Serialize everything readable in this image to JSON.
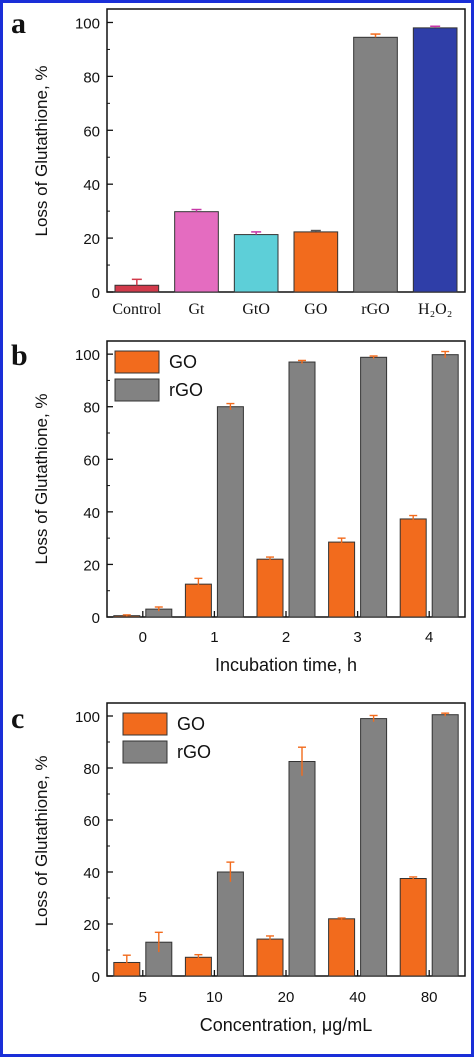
{
  "chart_data": [
    {
      "panel_label": "a",
      "type": "bar",
      "ylabel": "Loss of Glutathione, %",
      "xlabel": "",
      "ylim": [
        0,
        105
      ],
      "yticks": [
        "0",
        "20",
        "40",
        "60",
        "80",
        "100"
      ],
      "category_labels": [
        "Control",
        "Gt",
        "GtO",
        "GO",
        "rGO",
        "H₂O₂"
      ],
      "categories": [
        "Control",
        "Gt",
        "GtO",
        "GO",
        "rGO",
        "H2O2"
      ],
      "values": [
        2.5,
        29.8,
        21.3,
        22.3,
        94.5,
        98.0
      ],
      "errors": [
        2.2,
        0.8,
        1.0,
        0.5,
        1.2,
        0.6
      ],
      "colors": [
        "#d23a4b",
        "#e46cc0",
        "#5dcfd8",
        "#f26b1d",
        "#828282",
        "#2f3ea8"
      ],
      "error_colors": [
        "#d23a4b",
        "#c838a8",
        "#c838a8",
        "#555555",
        "#f26b1d",
        "#c838a8"
      ],
      "grid": false
    },
    {
      "panel_label": "b",
      "type": "bar",
      "ylabel": "Loss of Glutathione, %",
      "xlabel": "Incubation time, h",
      "ylim": [
        0,
        105
      ],
      "yticks": [
        "0",
        "20",
        "40",
        "60",
        "80",
        "100"
      ],
      "categories": [
        "0",
        "1",
        "2",
        "3",
        "4"
      ],
      "series": [
        {
          "name": "GO",
          "values": [
            0.5,
            12.5,
            22.0,
            28.5,
            37.3
          ],
          "errors": [
            0.3,
            2.2,
            0.8,
            1.5,
            1.3
          ],
          "color": "#f26b1d"
        },
        {
          "name": "rGO",
          "values": [
            3.0,
            80.0,
            97.0,
            98.8,
            99.8
          ],
          "errors": [
            0.8,
            1.2,
            0.6,
            0.5,
            1.2
          ],
          "color": "#828282"
        }
      ],
      "error_color": "#f26b1d",
      "legend": "top-left",
      "grid": false
    },
    {
      "panel_label": "c",
      "type": "bar",
      "ylabel": "Loss of Glutathione, %",
      "xlabel": "Concentration, μg/mL",
      "ylim": [
        0,
        105
      ],
      "yticks": [
        "0",
        "20",
        "40",
        "60",
        "80",
        "100"
      ],
      "categories": [
        "5",
        "10",
        "20",
        "40",
        "80"
      ],
      "series": [
        {
          "name": "GO",
          "values": [
            5.2,
            7.2,
            14.2,
            22.0,
            37.5
          ],
          "errors": [
            2.8,
            1.0,
            1.2,
            0.3,
            0.6
          ],
          "color": "#f26b1d"
        },
        {
          "name": "rGO",
          "values": [
            13.0,
            40.0,
            82.5,
            99.0,
            100.5
          ],
          "errors": [
            3.8,
            3.8,
            5.5,
            1.2,
            0.6
          ],
          "color": "#828282"
        }
      ],
      "error_color": "#f26b1d",
      "legend": "top-left",
      "grid": false
    }
  ]
}
